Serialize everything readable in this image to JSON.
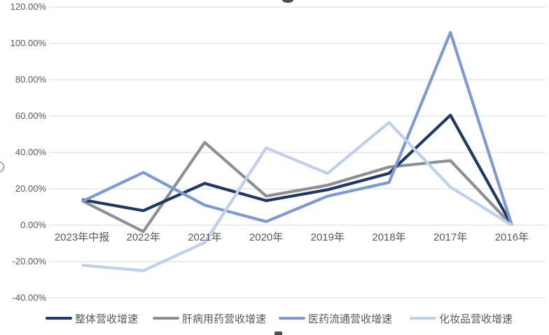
{
  "chart_data": {
    "type": "line",
    "categories": [
      "2023年中报",
      "2022年",
      "2021年",
      "2020年",
      "2019年",
      "2018年",
      "2017年",
      "2016年"
    ],
    "series": [
      {
        "name": "整体营收增速",
        "color": "#1F3864",
        "values": [
          14,
          8,
          23,
          13.5,
          19.5,
          28.5,
          60.5,
          0
        ]
      },
      {
        "name": "肝病用药营收增速",
        "color": "#8C9096",
        "values": [
          13.5,
          -3.5,
          45.5,
          16,
          22,
          32,
          35.5,
          0
        ]
      },
      {
        "name": "医药流通营收增速",
        "color": "#7D9BD2",
        "values": [
          13,
          29,
          11,
          2,
          16,
          23.5,
          106,
          0
        ]
      },
      {
        "name": "化妆品营收增速",
        "color": "#BDD0EC",
        "values": [
          -22,
          -25,
          -9.5,
          42.5,
          28.5,
          56.5,
          21,
          0
        ]
      }
    ],
    "y_ticks": [
      {
        "value": 120,
        "label": "120.00%"
      },
      {
        "value": 100,
        "label": "100.00%"
      },
      {
        "value": 80,
        "label": "80.00%"
      },
      {
        "value": 60,
        "label": "60.00%"
      },
      {
        "value": 40,
        "label": "40.00%"
      },
      {
        "value": 20,
        "label": "20.00%"
      },
      {
        "value": 0,
        "label": "0.00%"
      },
      {
        "value": -20,
        "label": "-20.00%"
      },
      {
        "value": -40,
        "label": "-40.00%"
      }
    ],
    "ylim": [
      -40,
      120
    ],
    "xlabel": "",
    "ylabel": "",
    "title": "",
    "grid": true,
    "gridline_color": "#D9D9D9",
    "axis_text_color": "#595959",
    "legend_position": "bottom"
  }
}
